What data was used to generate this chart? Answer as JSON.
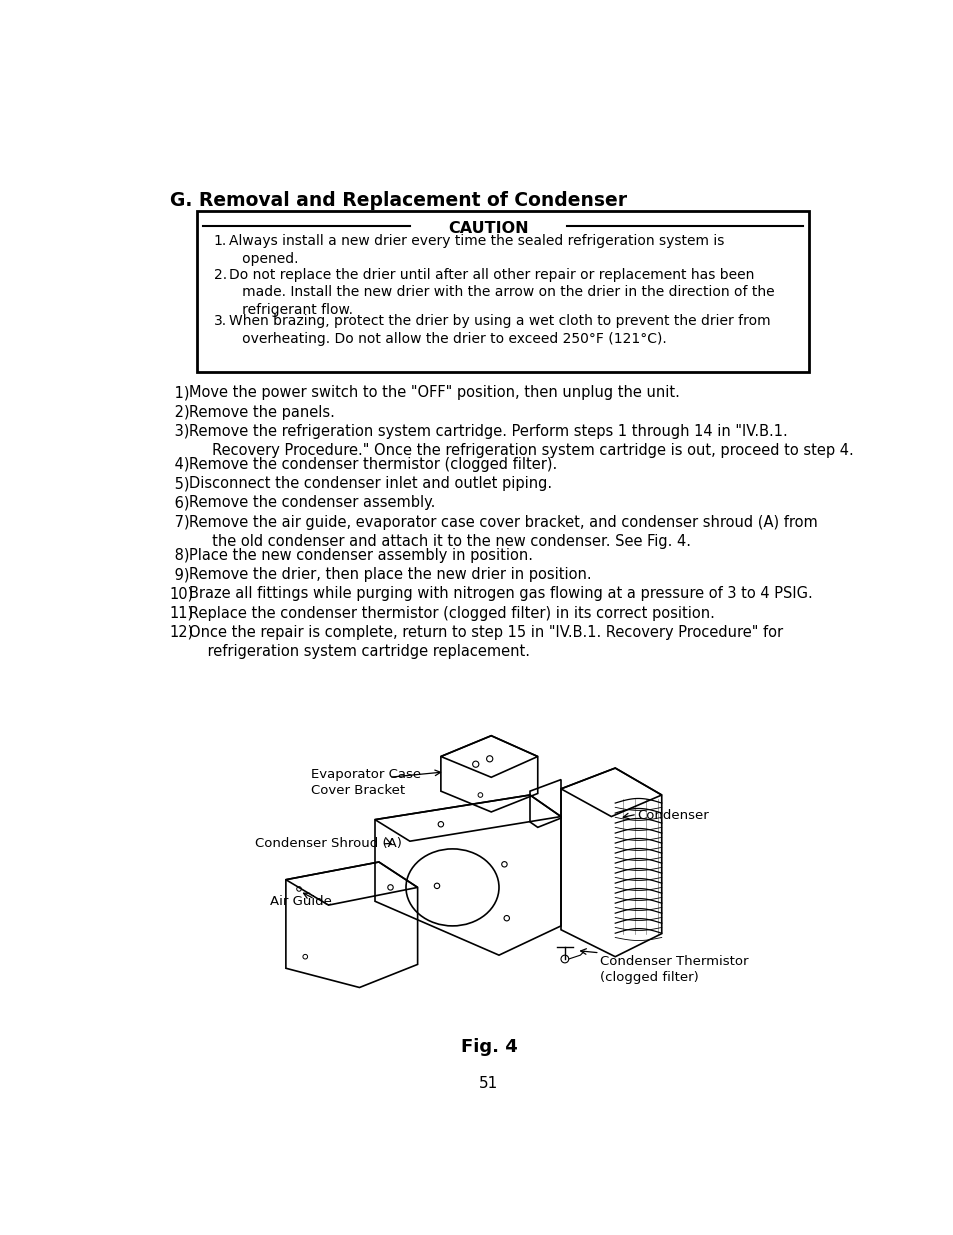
{
  "title": "G. Removal and Replacement of Condenser",
  "caution_title": "CAUTION",
  "caution_items": [
    [
      "1.",
      "Always install a new drier every time the sealed refrigeration system is\n   opened."
    ],
    [
      "2.",
      "Do not replace the drier until after all other repair or replacement has been\n   made. Install the new drier with the arrow on the drier in the direction of the\n   refrigerant flow."
    ],
    [
      "3.",
      "When brazing, protect the drier by using a wet cloth to prevent the drier from\n   overheating. Do not allow the drier to exceed 250°F (121°C)."
    ]
  ],
  "steps": [
    [
      " 1)",
      "Move the power switch to the \"OFF\" position, then unplug the unit.",
      1
    ],
    [
      " 2)",
      "Remove the panels.",
      1
    ],
    [
      " 3)",
      "Remove the refrigeration system cartridge. Perform steps 1 through 14 in \"IV.B.1.\n     Recovery Procedure.\" Once the refrigeration system cartridge is out, proceed to step 4.",
      2
    ],
    [
      " 4)",
      "Remove the condenser thermistor (clogged filter).",
      1
    ],
    [
      " 5)",
      "Disconnect the condenser inlet and outlet piping.",
      1
    ],
    [
      " 6)",
      "Remove the condenser assembly.",
      1
    ],
    [
      " 7)",
      "Remove the air guide, evaporator case cover bracket, and condenser shroud (A) from\n     the old condenser and attach it to the new condenser. See Fig. 4.",
      2
    ],
    [
      " 8)",
      "Place the new condenser assembly in position.",
      1
    ],
    [
      " 9)",
      "Remove the drier, then place the new drier in position.",
      1
    ],
    [
      "10)",
      "Braze all fittings while purging with nitrogen gas flowing at a pressure of 3 to 4 PSIG.",
      1
    ],
    [
      "11)",
      "Replace the condenser thermistor (clogged filter) in its correct position.",
      1
    ],
    [
      "12)",
      "Once the repair is complete, return to step 15 in \"IV.B.1. Recovery Procedure\" for\n    refrigeration system cartridge replacement.",
      2
    ]
  ],
  "fig_caption": "Fig. 4",
  "page_number": "51",
  "bg_color": "#ffffff",
  "text_color": "#000000"
}
